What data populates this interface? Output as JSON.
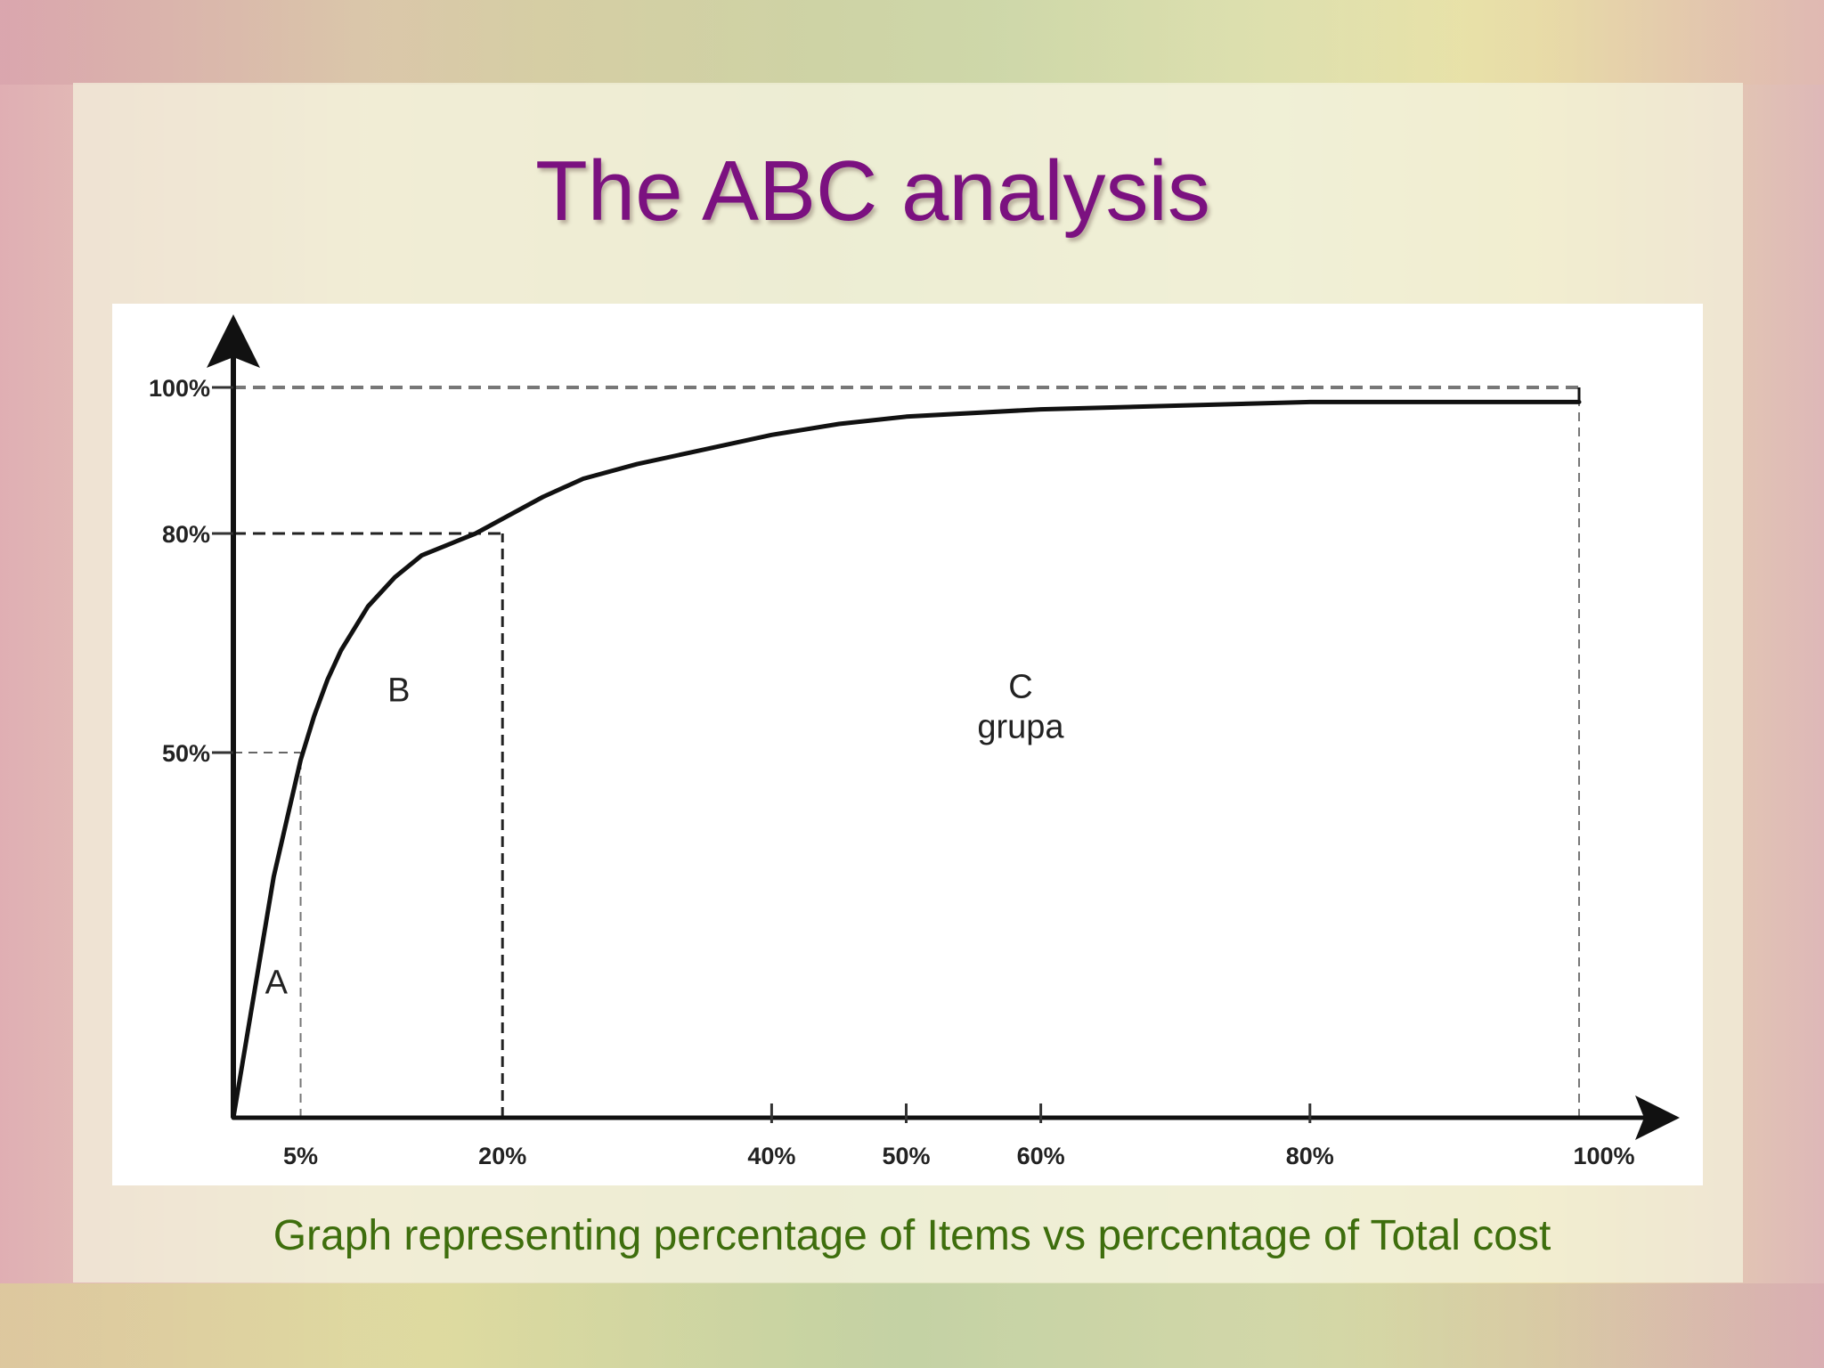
{
  "slide": {
    "title": "The ABC analysis",
    "caption": "Graph representing percentage of Items vs percentage of Total cost",
    "title_color": "#7b1180",
    "caption_color": "#3e6e0d"
  },
  "chart_data": {
    "type": "line",
    "title": "",
    "xlabel": "",
    "ylabel": "",
    "xlim": [
      0,
      100
    ],
    "ylim": [
      0,
      100
    ],
    "grid": false,
    "legend": "none",
    "x_ticks": [
      5,
      20,
      40,
      50,
      60,
      80,
      100
    ],
    "x_tick_labels": [
      "5%",
      "20%",
      "40%",
      "50%",
      "60%",
      "80%",
      "100%"
    ],
    "y_ticks": [
      50,
      80,
      100
    ],
    "y_tick_labels": [
      "50%",
      "80%",
      "100%"
    ],
    "series": [
      {
        "x": [
          0,
          1,
          2,
          3,
          4,
          5,
          6,
          7,
          8,
          10,
          12,
          14,
          16,
          18,
          20,
          23,
          26,
          30,
          35,
          40,
          45,
          50,
          60,
          70,
          80,
          90,
          100
        ],
        "y": [
          0,
          11,
          22,
          33,
          41,
          49,
          55,
          60,
          64,
          70,
          74,
          77,
          78.5,
          80,
          82,
          85,
          87.5,
          89.5,
          91.5,
          93.5,
          95,
          96,
          97,
          97.5,
          98,
          98,
          98
        ]
      }
    ],
    "reference_lines": [
      {
        "axis": "y",
        "value": 100
      },
      {
        "axis": "y",
        "value": 80,
        "x_end": 20
      },
      {
        "axis": "y",
        "value": 50,
        "x_end": 5
      },
      {
        "axis": "x",
        "value": 5,
        "y_end": 50
      },
      {
        "axis": "x",
        "value": 20,
        "y_end": 80
      },
      {
        "axis": "x",
        "value": 100,
        "y_end": 100
      }
    ],
    "annotations": [
      {
        "text": "A",
        "x": 3.2,
        "y": 17
      },
      {
        "text": "B",
        "x": 12.3,
        "y": 57
      },
      {
        "text": "C",
        "x": 58.5,
        "y": 57.5
      },
      {
        "text": "grupa",
        "x": 58.5,
        "y": 52
      }
    ]
  }
}
